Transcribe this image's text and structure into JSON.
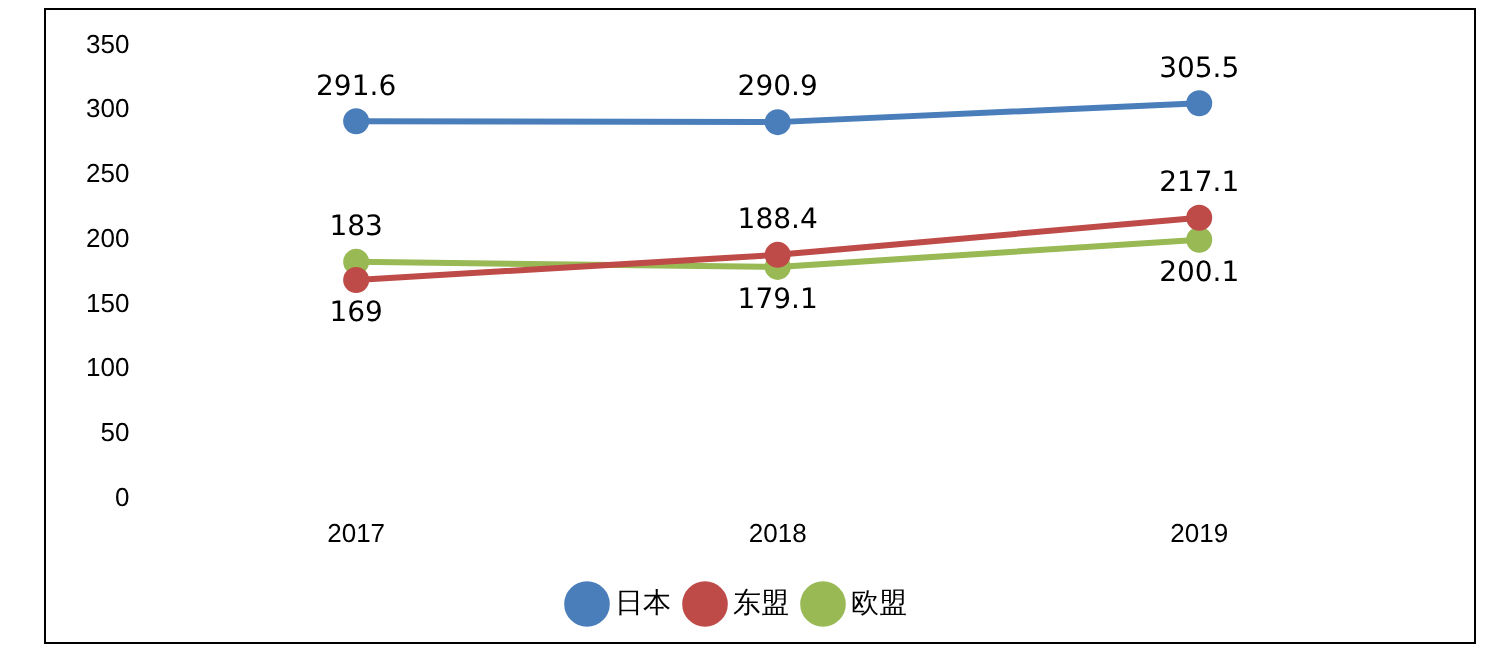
{
  "chart_data": {
    "type": "line",
    "categories": [
      "2017",
      "2018",
      "2019"
    ],
    "series": [
      {
        "name": "日本",
        "color": "#4a7ebb",
        "values": [
          291.6,
          290.9,
          305.5
        ]
      },
      {
        "name": "东盟",
        "color": "#be4b48",
        "values": [
          169,
          188.4,
          217.1
        ]
      },
      {
        "name": "欧盟",
        "color": "#98b954",
        "values": [
          183,
          179.1,
          200.1
        ]
      }
    ],
    "ylim": [
      0,
      350
    ],
    "yticks": [
      0,
      50,
      100,
      150,
      200,
      250,
      300,
      350
    ],
    "grid": false,
    "legend": "bottom",
    "marker": "circle",
    "line_style": "solid",
    "data_labels": true
  }
}
